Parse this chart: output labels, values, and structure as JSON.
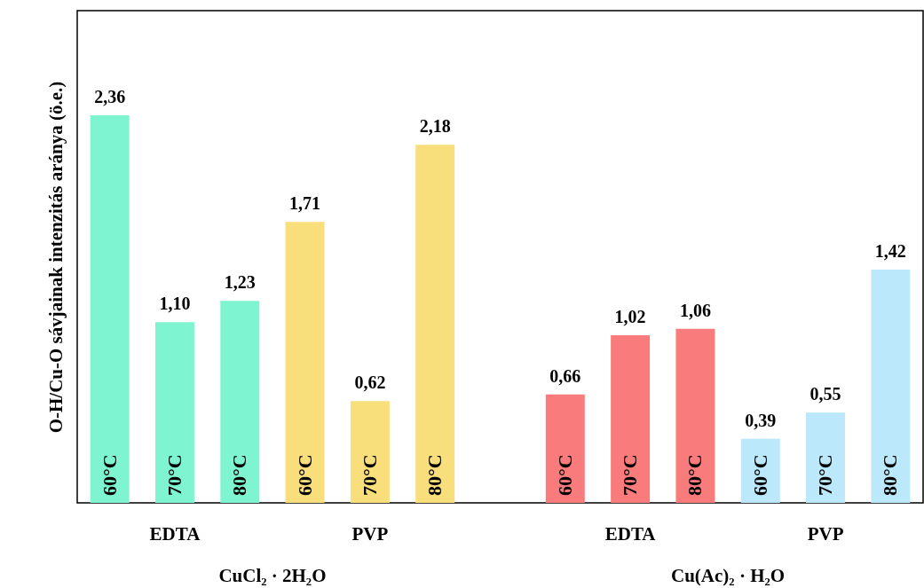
{
  "chart_data": {
    "type": "bar",
    "ylabel": "O-H/Cu-O sávjainak intenzitás aránya (ö.e.)",
    "categories": [
      "60°C",
      "70°C",
      "80°C",
      "60°C",
      "70°C",
      "80°C",
      null,
      "60°C",
      "70°C",
      "80°C",
      "60°C",
      "70°C",
      "80°C"
    ],
    "values": [
      2.36,
      1.1,
      1.23,
      1.71,
      0.62,
      2.18,
      null,
      0.66,
      1.02,
      1.06,
      0.39,
      0.55,
      1.42
    ],
    "value_labels": [
      "2,36",
      "1,10",
      "1,23",
      "1,71",
      "0,62",
      "2,18",
      null,
      "0,66",
      "1,02",
      "1,06",
      "0,39",
      "0,55",
      "1,42"
    ],
    "colors": [
      "#7ef5d0",
      "#7ef5d0",
      "#7ef5d0",
      "#f9df7b",
      "#f9df7b",
      "#f9df7b",
      null,
      "#f97b7b",
      "#f97b7b",
      "#f97b7b",
      "#bce8fb",
      "#bce8fb",
      "#bce8fb"
    ],
    "annotations": [
      "EDTA",
      "PVP",
      "EDTA",
      "PVP",
      "CuCl₂ · 2H₂O",
      "Cu(Ac)₂ · H₂O"
    ]
  }
}
